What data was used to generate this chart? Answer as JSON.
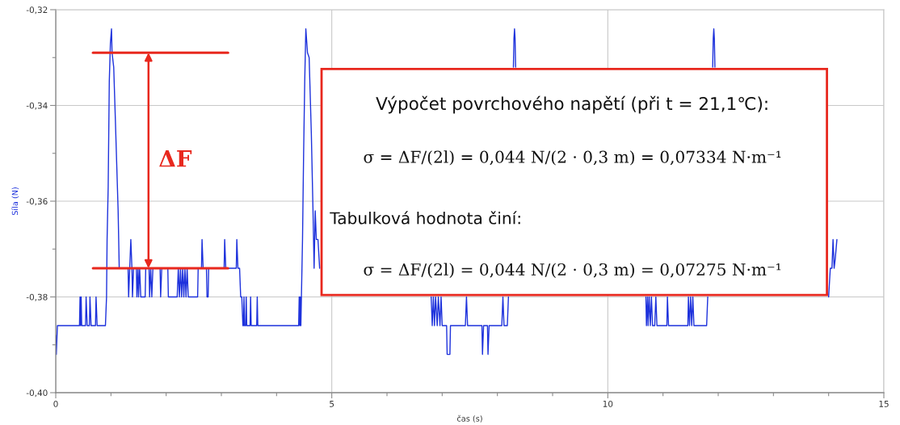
{
  "chart_data": {
    "type": "line",
    "xlabel": "čas (s)",
    "ylabel": "Síla (N)",
    "xlim": [
      0,
      15
    ],
    "ylim": [
      -0.4,
      -0.32
    ],
    "xticks": [
      0,
      {
        "value": 1,
        "label": null
      },
      {
        "value": 2,
        "label": null
      },
      {
        "value": 3,
        "label": null
      },
      {
        "value": 4,
        "label": null
      },
      5,
      {
        "value": 6,
        "label": null
      },
      {
        "value": 7,
        "label": null
      },
      {
        "value": 8,
        "label": null
      },
      {
        "value": 9,
        "label": null
      },
      10,
      {
        "value": 11,
        "label": null
      },
      {
        "value": 12,
        "label": null
      },
      {
        "value": 13,
        "label": null
      },
      {
        "value": 14,
        "label": null
      },
      15
    ],
    "yticks": [
      {
        "value": -0.4,
        "label": "-0,40"
      },
      {
        "value": -0.39,
        "label": null
      },
      {
        "value": -0.38,
        "label": "-0,38"
      },
      {
        "value": -0.37,
        "label": null
      },
      {
        "value": -0.36,
        "label": "-0,36"
      },
      {
        "value": -0.35,
        "label": null
      },
      {
        "value": -0.34,
        "label": "-0,34"
      },
      {
        "value": -0.33,
        "label": null
      },
      {
        "value": -0.32,
        "label": "-0,32"
      }
    ],
    "grid": true,
    "series": [
      {
        "color": "#1e32dc",
        "x": [
          0,
          0.01,
          0.03,
          0.43,
          0.44,
          0.45,
          0.46,
          0.47,
          0.54,
          0.55,
          0.57,
          0.61,
          0.62,
          0.64,
          0.72,
          0.73,
          0.75,
          0.9,
          0.92,
          0.93,
          0.95,
          0.97,
          0.99,
          1.01,
          1.02,
          1.03,
          1.05,
          1.08,
          1.13,
          1.15,
          1.31,
          1.32,
          1.34,
          1.36,
          1.38,
          1.39,
          1.41,
          1.46,
          1.47,
          1.49,
          1.5,
          1.52,
          1.54,
          1.62,
          1.63,
          1.69,
          1.7,
          1.72,
          1.74,
          1.76,
          1.89,
          1.9,
          1.92,
          2.03,
          2.04,
          2.2,
          2.22,
          2.24,
          2.26,
          2.28,
          2.3,
          2.32,
          2.34,
          2.36,
          2.38,
          2.4,
          2.57,
          2.58,
          2.64,
          2.65,
          2.67,
          2.73,
          2.74,
          2.76,
          2.77,
          3.05,
          3.06,
          3.08,
          3.27,
          3.28,
          3.3,
          3.33,
          3.35,
          3.37,
          3.39,
          3.4,
          3.41,
          3.42,
          3.44,
          3.45,
          3.46,
          3.52,
          3.53,
          3.54,
          3.64,
          3.65,
          3.66,
          4.4,
          4.41,
          4.42,
          4.43,
          4.44,
          4.45,
          4.47,
          4.49,
          4.51,
          4.53,
          4.56,
          4.59,
          4.63,
          4.66,
          4.68,
          4.7,
          4.72,
          4.75,
          4.78,
          5.8,
          6.8,
          6.82,
          6.84,
          6.86,
          6.88,
          6.91,
          6.93,
          6.96,
          6.98,
          7.0,
          7.08,
          7.09,
          7.14,
          7.15,
          7.42,
          7.44,
          7.46,
          7.72,
          7.73,
          7.75,
          7.82,
          7.83,
          7.85,
          8.08,
          8.1,
          8.12,
          8.18,
          8.2,
          8.25,
          8.29,
          8.3,
          8.31,
          8.32,
          8.33,
          9.5,
          10.69,
          10.7,
          10.72,
          10.73,
          10.75,
          10.77,
          10.79,
          10.81,
          10.85,
          10.87,
          10.89,
          11.07,
          11.08,
          11.1,
          11.45,
          11.46,
          11.48,
          11.5,
          11.52,
          11.54,
          11.56,
          11.79,
          11.81,
          11.86,
          11.9,
          11.91,
          11.92,
          11.93,
          11.94,
          13.0,
          14.0,
          14.03,
          14.06,
          14.08,
          14.1,
          14.12,
          14.15
        ],
        "values": [
          -0.388,
          -0.392,
          -0.386,
          -0.386,
          -0.38,
          -0.386,
          -0.38,
          -0.386,
          -0.386,
          -0.38,
          -0.386,
          -0.386,
          -0.38,
          -0.386,
          -0.386,
          -0.38,
          -0.386,
          -0.386,
          -0.38,
          -0.368,
          -0.357,
          -0.335,
          -0.327,
          -0.324,
          -0.329,
          -0.33,
          -0.332,
          -0.343,
          -0.362,
          -0.374,
          -0.374,
          -0.38,
          -0.374,
          -0.368,
          -0.374,
          -0.38,
          -0.374,
          -0.374,
          -0.38,
          -0.374,
          -0.38,
          -0.374,
          -0.38,
          -0.38,
          -0.374,
          -0.374,
          -0.38,
          -0.374,
          -0.38,
          -0.374,
          -0.374,
          -0.38,
          -0.374,
          -0.374,
          -0.38,
          -0.38,
          -0.374,
          -0.38,
          -0.374,
          -0.38,
          -0.374,
          -0.38,
          -0.374,
          -0.38,
          -0.374,
          -0.38,
          -0.38,
          -0.374,
          -0.374,
          -0.368,
          -0.374,
          -0.374,
          -0.38,
          -0.38,
          -0.374,
          -0.374,
          -0.368,
          -0.374,
          -0.374,
          -0.368,
          -0.374,
          -0.374,
          -0.38,
          -0.38,
          -0.386,
          -0.386,
          -0.38,
          -0.386,
          -0.386,
          -0.38,
          -0.386,
          -0.386,
          -0.38,
          -0.386,
          -0.386,
          -0.38,
          -0.386,
          -0.386,
          -0.38,
          -0.386,
          -0.38,
          -0.386,
          -0.38,
          -0.368,
          -0.35,
          -0.335,
          -0.324,
          -0.329,
          -0.33,
          -0.346,
          -0.362,
          -0.374,
          -0.362,
          -0.368,
          -0.368,
          -0.374,
          null,
          -0.38,
          -0.386,
          -0.38,
          -0.386,
          -0.38,
          -0.386,
          -0.38,
          -0.386,
          -0.38,
          -0.386,
          -0.386,
          -0.392,
          -0.392,
          -0.386,
          -0.386,
          -0.38,
          -0.386,
          -0.386,
          -0.392,
          -0.386,
          -0.386,
          -0.392,
          -0.386,
          -0.386,
          -0.38,
          -0.386,
          -0.386,
          -0.38,
          null,
          -0.332,
          -0.326,
          -0.324,
          -0.326,
          -0.332,
          null,
          -0.38,
          -0.386,
          -0.38,
          -0.386,
          -0.38,
          -0.386,
          -0.38,
          -0.386,
          -0.386,
          -0.38,
          -0.386,
          -0.386,
          -0.38,
          -0.386,
          -0.386,
          -0.38,
          -0.386,
          -0.38,
          -0.386,
          -0.38,
          -0.386,
          -0.386,
          -0.38,
          null,
          -0.332,
          -0.326,
          -0.324,
          -0.326,
          -0.332,
          null,
          -0.38,
          -0.374,
          -0.374,
          -0.368,
          -0.374,
          -0.372,
          -0.368
        ]
      }
    ],
    "ref_lines": [
      {
        "axis": "y",
        "value": -0.329,
        "color": "#e8281e"
      },
      {
        "axis": "y",
        "value": -0.374,
        "color": "#e8281e"
      }
    ],
    "annotations": [
      "ΔF",
      "Výpočet povrchového napětí (při t = 21,1℃):",
      "σ = ΔF/(2l) = 0,044 N/(2 · 0,3 m) = 0,07334 N·m⁻¹",
      "Tabulková hodnota činí:",
      "σ = ΔF/(2l) = 0,044 N/(2 · 0,3 m) = 0,07275 N·m⁻¹"
    ]
  }
}
